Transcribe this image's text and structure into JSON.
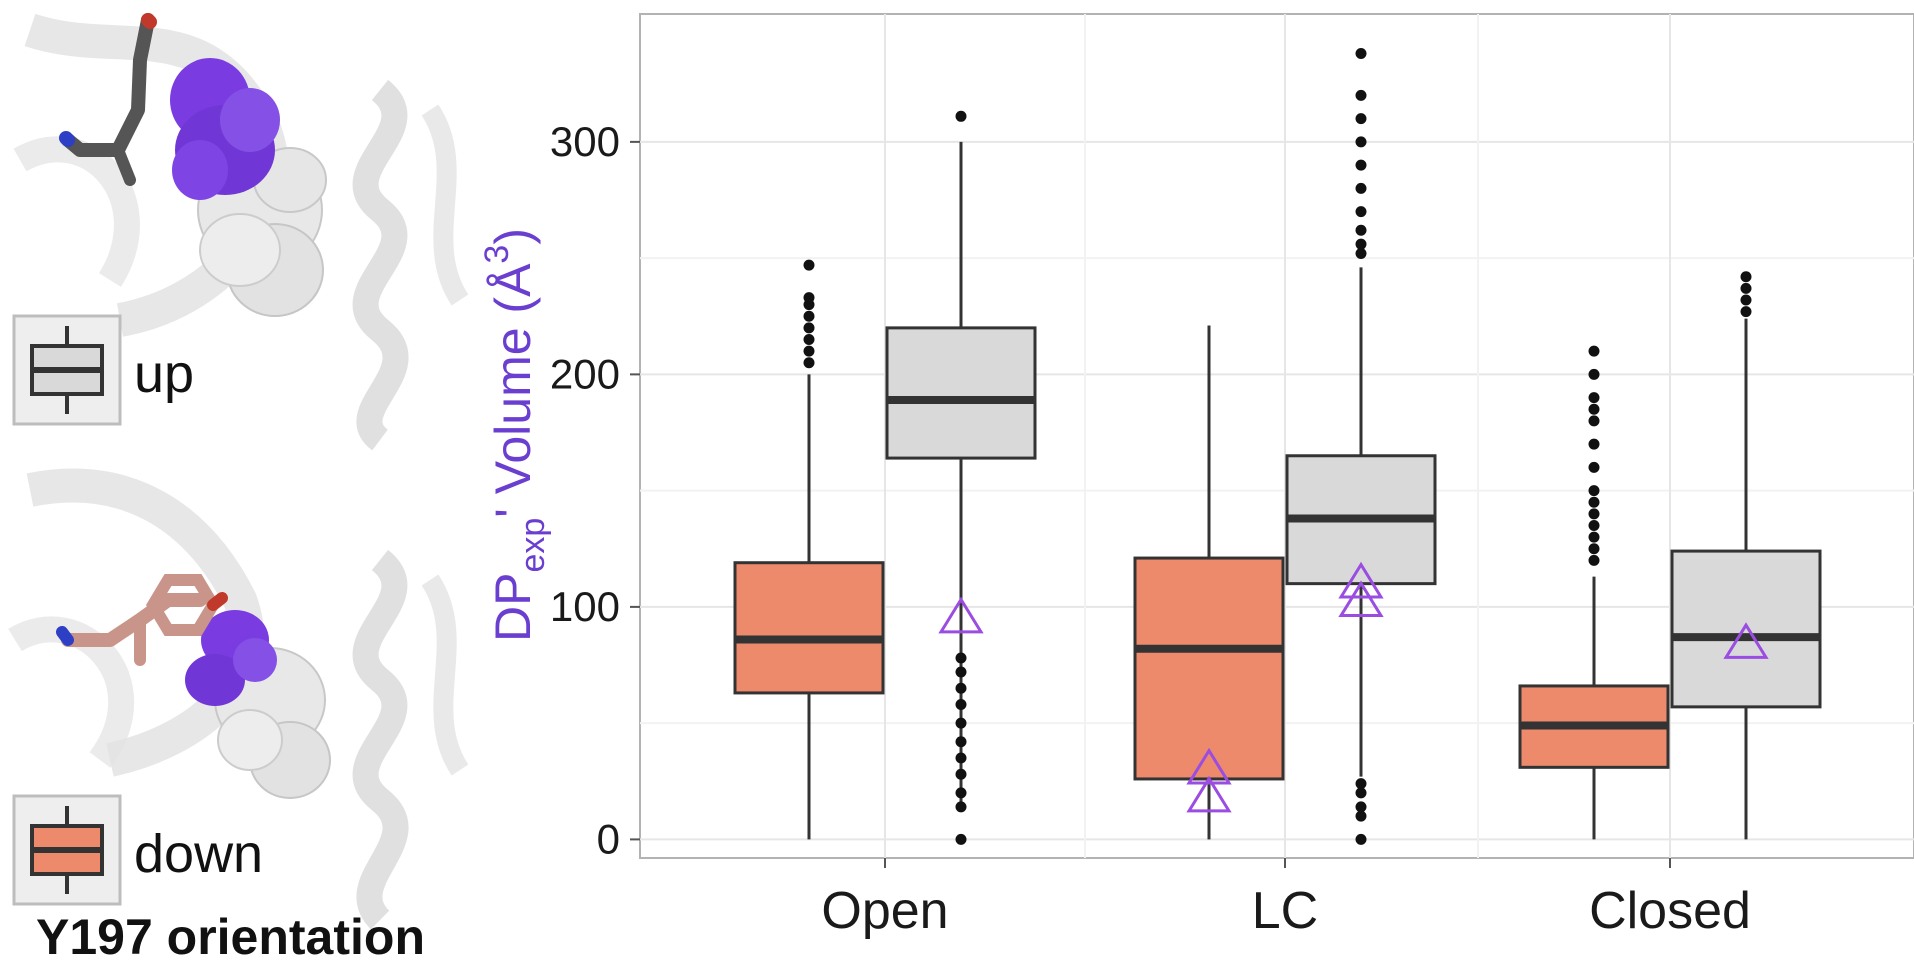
{
  "legend": {
    "title": "Y197 orientation",
    "items": [
      {
        "label": "up",
        "color": "#d9d9d9"
      },
      {
        "label": "down",
        "color": "#ee8a6c"
      }
    ]
  },
  "colors": {
    "up": "#d9d9d9",
    "down": "#ee8a6c",
    "marker": "#9a4de0",
    "ylabel": "#6a3fd0",
    "helix": "#d4d4d4",
    "pocket_purple": "#7a3ce0",
    "pocket_white": "#e6e6e6"
  },
  "chart_data": {
    "type": "box",
    "ylabel": {
      "main": "DP",
      "sub": "exp",
      "rest": "' Volume (Å",
      "sup": "3",
      "close": ")"
    },
    "ylim": [
      -8,
      355
    ],
    "yticks": [
      0,
      100,
      200,
      300
    ],
    "grid": true,
    "categories": [
      "Open",
      "LC",
      "Closed"
    ],
    "series": [
      {
        "name": "down",
        "boxes": [
          {
            "min": 0,
            "q1": 63,
            "median": 86,
            "q3": 119,
            "whisker_high": 200,
            "outliers": [
              205,
              210,
              215,
              220,
              225,
              230,
              233,
              247
            ]
          },
          {
            "min": 0,
            "q1": 26,
            "median": 82,
            "q3": 121,
            "whisker_high": 221,
            "outliers": []
          },
          {
            "min": 0,
            "q1": 31,
            "median": 49,
            "q3": 66,
            "whisker_high": 113,
            "outliers": [
              120,
              125,
              130,
              135,
              140,
              145,
              150,
              160,
              170,
              180,
              185,
              190,
              200,
              210
            ]
          }
        ]
      },
      {
        "name": "up",
        "boxes": [
          {
            "min": 14,
            "q1": 164,
            "median": 189,
            "q3": 220,
            "whisker_high": 300,
            "outliers": [
              0,
              14,
              20,
              28,
              35,
              42,
              50,
              58,
              65,
              72,
              78,
              311
            ]
          },
          {
            "min": 27,
            "q1": 110,
            "median": 138,
            "q3": 165,
            "whisker_high": 246,
            "outliers": [
              0,
              10,
              14,
              20,
              24,
              252,
              256,
              262,
              270,
              280,
              290,
              300,
              310,
              320,
              338
            ]
          },
          {
            "min": 0,
            "q1": 57,
            "median": 87,
            "q3": 124,
            "whisker_high": 224,
            "outliers": [
              227,
              232,
              237,
              242
            ]
          }
        ]
      }
    ],
    "markers": {
      "shape": "triangle",
      "points": [
        {
          "category": "Open",
          "group": "up",
          "y": 95
        },
        {
          "category": "LC",
          "group": "down",
          "y": 18
        },
        {
          "category": "LC",
          "group": "down",
          "y": 30
        },
        {
          "category": "LC",
          "group": "up",
          "y": 102
        },
        {
          "category": "LC",
          "group": "up",
          "y": 110
        },
        {
          "category": "Closed",
          "group": "up",
          "y": 84
        }
      ]
    }
  }
}
